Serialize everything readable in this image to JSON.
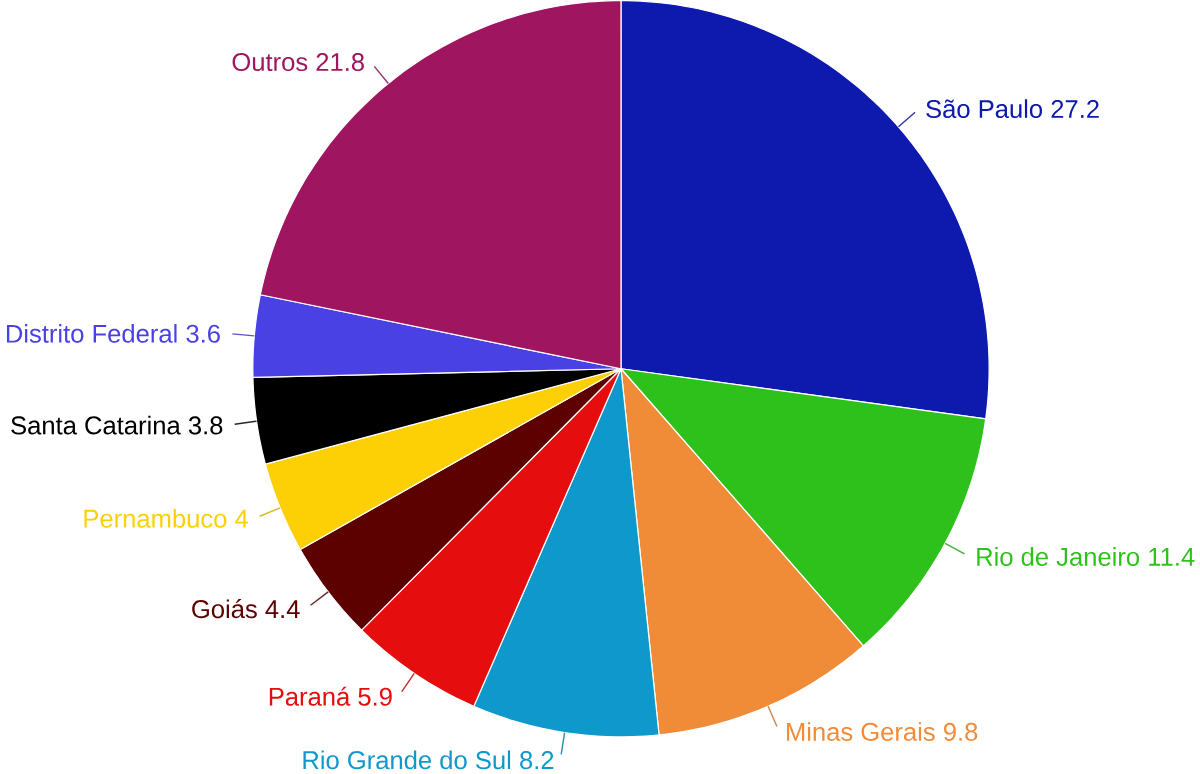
{
  "chart_data": {
    "type": "pie",
    "categories": [
      "São Paulo",
      "Rio de Janeiro",
      "Minas Gerais",
      "Rio Grande do Sul",
      "Paraná",
      "Goiás",
      "Pernambuco",
      "Santa Catarina",
      "Distrito Federal",
      "Outros"
    ],
    "values": [
      27.2,
      11.4,
      9.8,
      8.2,
      5.9,
      4.4,
      4,
      3.8,
      3.6,
      21.8
    ],
    "colors": [
      "#0d1aad",
      "#2ec11b",
      "#f08c38",
      "#0f98cc",
      "#e50d0d",
      "#5c0000",
      "#fdd005",
      "#000000",
      "#4a41e5",
      "#a0155f"
    ],
    "data_labels": true
  }
}
